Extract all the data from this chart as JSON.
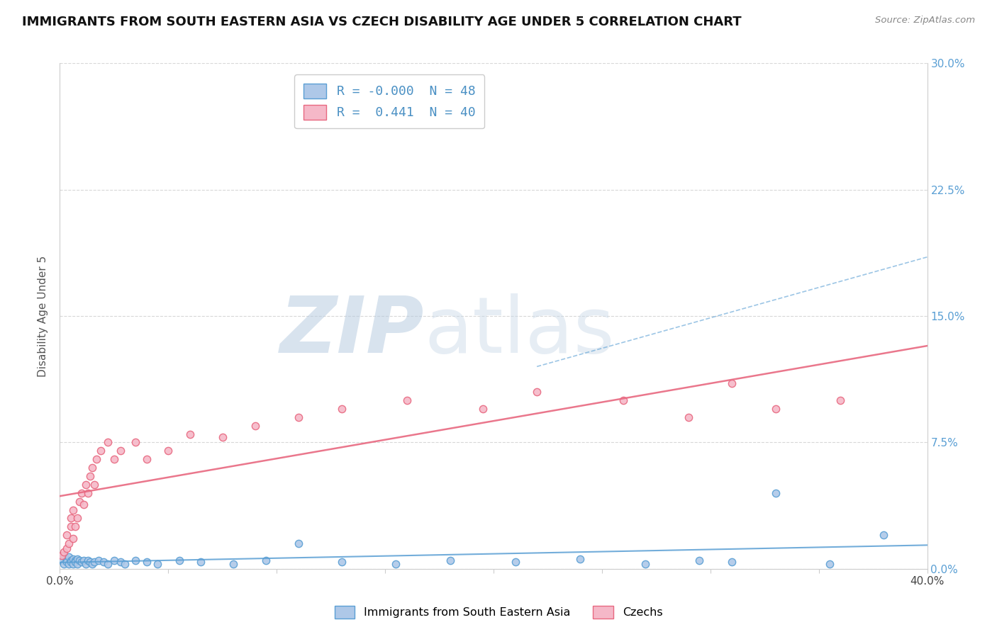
{
  "title": "IMMIGRANTS FROM SOUTH EASTERN ASIA VS CZECH DISABILITY AGE UNDER 5 CORRELATION CHART",
  "source": "Source: ZipAtlas.com",
  "ylabel_label": "Disability Age Under 5",
  "xlim": [
    0.0,
    0.4
  ],
  "ylim": [
    0.0,
    0.3
  ],
  "xticks": [
    0.0,
    0.05,
    0.1,
    0.15,
    0.2,
    0.25,
    0.3,
    0.35,
    0.4
  ],
  "ytick_labels_right": [
    "0.0%",
    "7.5%",
    "15.0%",
    "22.5%",
    "30.0%"
  ],
  "yticks_right": [
    0.0,
    0.075,
    0.15,
    0.225,
    0.3
  ],
  "blue_R": "-0.000",
  "blue_N": "48",
  "pink_R": "0.441",
  "pink_N": "40",
  "blue_color": "#aec8e8",
  "pink_color": "#f5b8c8",
  "blue_edge_color": "#5a9fd4",
  "pink_edge_color": "#e86880",
  "blue_line_color": "#5a9fd4",
  "pink_line_color": "#e86880",
  "blue_scatter_x": [
    0.001,
    0.002,
    0.002,
    0.003,
    0.003,
    0.004,
    0.004,
    0.005,
    0.005,
    0.006,
    0.006,
    0.007,
    0.007,
    0.008,
    0.008,
    0.009,
    0.01,
    0.011,
    0.012,
    0.013,
    0.014,
    0.015,
    0.016,
    0.018,
    0.02,
    0.022,
    0.025,
    0.028,
    0.03,
    0.035,
    0.04,
    0.045,
    0.055,
    0.065,
    0.08,
    0.095,
    0.11,
    0.13,
    0.155,
    0.18,
    0.21,
    0.24,
    0.27,
    0.295,
    0.31,
    0.33,
    0.355,
    0.38
  ],
  "blue_scatter_y": [
    0.005,
    0.008,
    0.003,
    0.006,
    0.004,
    0.007,
    0.003,
    0.005,
    0.004,
    0.006,
    0.003,
    0.005,
    0.004,
    0.006,
    0.003,
    0.005,
    0.004,
    0.005,
    0.003,
    0.005,
    0.004,
    0.003,
    0.004,
    0.005,
    0.004,
    0.003,
    0.005,
    0.004,
    0.003,
    0.005,
    0.004,
    0.003,
    0.005,
    0.004,
    0.003,
    0.005,
    0.015,
    0.004,
    0.003,
    0.005,
    0.004,
    0.006,
    0.003,
    0.005,
    0.004,
    0.045,
    0.003,
    0.02
  ],
  "pink_scatter_x": [
    0.001,
    0.002,
    0.003,
    0.003,
    0.004,
    0.005,
    0.005,
    0.006,
    0.006,
    0.007,
    0.008,
    0.009,
    0.01,
    0.011,
    0.012,
    0.013,
    0.014,
    0.015,
    0.016,
    0.017,
    0.019,
    0.022,
    0.025,
    0.028,
    0.035,
    0.04,
    0.05,
    0.06,
    0.075,
    0.09,
    0.11,
    0.13,
    0.16,
    0.195,
    0.22,
    0.26,
    0.29,
    0.31,
    0.33,
    0.36
  ],
  "pink_scatter_y": [
    0.008,
    0.01,
    0.012,
    0.02,
    0.015,
    0.025,
    0.03,
    0.035,
    0.018,
    0.025,
    0.03,
    0.04,
    0.045,
    0.038,
    0.05,
    0.045,
    0.055,
    0.06,
    0.05,
    0.065,
    0.07,
    0.075,
    0.065,
    0.07,
    0.075,
    0.065,
    0.07,
    0.08,
    0.078,
    0.085,
    0.09,
    0.095,
    0.1,
    0.095,
    0.105,
    0.1,
    0.09,
    0.11,
    0.095,
    0.1
  ],
  "watermark_zip": "ZIP",
  "watermark_atlas": "atlas",
  "watermark_color": "#c8d8ec",
  "background_color": "#ffffff",
  "grid_color": "#d8d8d8",
  "title_fontsize": 13,
  "axis_label_fontsize": 11,
  "tick_fontsize": 11,
  "legend_fontsize": 13
}
